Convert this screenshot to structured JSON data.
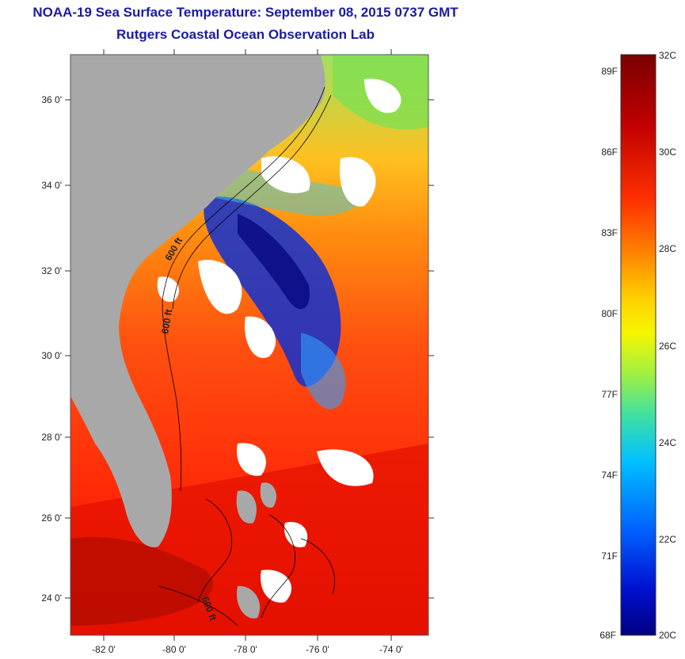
{
  "title": {
    "line1": "NOAA-19 Sea Surface Temperature:  September 08, 2015 0737 GMT",
    "line2": "Rutgers Coastal Ocean Observation Lab"
  },
  "axes": {
    "lat_ticks": [
      "36 0'",
      "34 0'",
      "32 0'",
      "30 0'",
      "28 0'",
      "26 0'",
      "24 0'"
    ],
    "lon_ticks": [
      "-82 0'",
      "-80 0'",
      "-78 0'",
      "-76 0'",
      "-74 0'"
    ]
  },
  "contour_labels": [
    "600 ft",
    "600 ft",
    "600 ft"
  ],
  "colorbar": {
    "f_labels": [
      "89F",
      "86F",
      "83F",
      "80F",
      "77F",
      "74F",
      "71F",
      "68F"
    ],
    "c_labels": [
      "32C",
      "30C",
      "28C",
      "26C",
      "24C",
      "22C",
      "20C"
    ],
    "colors": [
      "#7a0000",
      "#c00000",
      "#ff1a00",
      "#ff6a00",
      "#ffb000",
      "#f6f600",
      "#a0f040",
      "#20e0c0",
      "#00b0ff",
      "#0050ff",
      "#0000a0"
    ]
  },
  "legend_colors": {
    "land": "#a8a8a8",
    "cloud": "#ffffff",
    "contour": "#000000"
  }
}
